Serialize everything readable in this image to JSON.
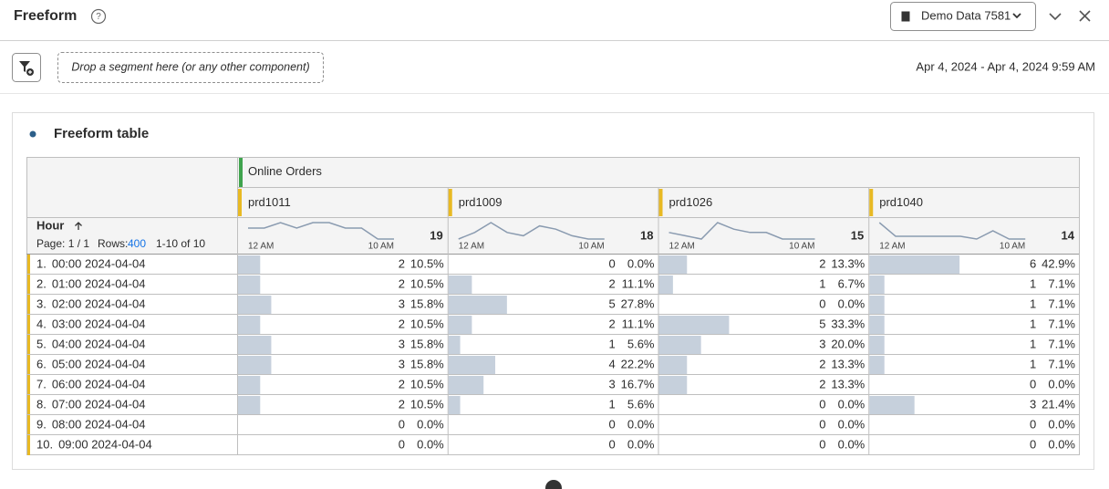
{
  "header": {
    "title": "Freeform",
    "dataview": "Demo Data 7581"
  },
  "toolbar": {
    "drop_zone": "Drop a segment here (or any other component)",
    "date_range": "Apr 4, 2024 - Apr 4, 2024 9:59 AM"
  },
  "panel": {
    "title": "Freeform table"
  },
  "table": {
    "metric": "Online Orders",
    "dimension": "Hour",
    "pagination": {
      "page": "Page: 1 / 1",
      "rows_label": "Rows:",
      "rows_value": "400",
      "range": "1-10 of 10"
    },
    "spark_start": "12 AM",
    "spark_end": "10 AM",
    "columns": [
      {
        "name": "prd1011",
        "total": 19
      },
      {
        "name": "prd1009",
        "total": 18
      },
      {
        "name": "prd1026",
        "total": 15
      },
      {
        "name": "prd1040",
        "total": 14
      }
    ],
    "rows": [
      {
        "rank": "1.",
        "label": "00:00 2024-04-04",
        "cells": [
          {
            "value": 2,
            "percent": "10.5%"
          },
          {
            "value": 0,
            "percent": "0.0%"
          },
          {
            "value": 2,
            "percent": "13.3%"
          },
          {
            "value": 6,
            "percent": "42.9%"
          }
        ]
      },
      {
        "rank": "2.",
        "label": "01:00 2024-04-04",
        "cells": [
          {
            "value": 2,
            "percent": "10.5%"
          },
          {
            "value": 2,
            "percent": "11.1%"
          },
          {
            "value": 1,
            "percent": "6.7%"
          },
          {
            "value": 1,
            "percent": "7.1%"
          }
        ]
      },
      {
        "rank": "3.",
        "label": "02:00 2024-04-04",
        "cells": [
          {
            "value": 3,
            "percent": "15.8%"
          },
          {
            "value": 5,
            "percent": "27.8%"
          },
          {
            "value": 0,
            "percent": "0.0%"
          },
          {
            "value": 1,
            "percent": "7.1%"
          }
        ]
      },
      {
        "rank": "4.",
        "label": "03:00 2024-04-04",
        "cells": [
          {
            "value": 2,
            "percent": "10.5%"
          },
          {
            "value": 2,
            "percent": "11.1%"
          },
          {
            "value": 5,
            "percent": "33.3%"
          },
          {
            "value": 1,
            "percent": "7.1%"
          }
        ]
      },
      {
        "rank": "5.",
        "label": "04:00 2024-04-04",
        "cells": [
          {
            "value": 3,
            "percent": "15.8%"
          },
          {
            "value": 1,
            "percent": "5.6%"
          },
          {
            "value": 3,
            "percent": "20.0%"
          },
          {
            "value": 1,
            "percent": "7.1%"
          }
        ]
      },
      {
        "rank": "6.",
        "label": "05:00 2024-04-04",
        "cells": [
          {
            "value": 3,
            "percent": "15.8%"
          },
          {
            "value": 4,
            "percent": "22.2%"
          },
          {
            "value": 2,
            "percent": "13.3%"
          },
          {
            "value": 1,
            "percent": "7.1%"
          }
        ]
      },
      {
        "rank": "7.",
        "label": "06:00 2024-04-04",
        "cells": [
          {
            "value": 2,
            "percent": "10.5%"
          },
          {
            "value": 3,
            "percent": "16.7%"
          },
          {
            "value": 2,
            "percent": "13.3%"
          },
          {
            "value": 0,
            "percent": "0.0%"
          }
        ]
      },
      {
        "rank": "8.",
        "label": "07:00 2024-04-04",
        "cells": [
          {
            "value": 2,
            "percent": "10.5%"
          },
          {
            "value": 1,
            "percent": "5.6%"
          },
          {
            "value": 0,
            "percent": "0.0%"
          },
          {
            "value": 3,
            "percent": "21.4%"
          }
        ]
      },
      {
        "rank": "9.",
        "label": "08:00 2024-04-04",
        "cells": [
          {
            "value": 0,
            "percent": "0.0%"
          },
          {
            "value": 0,
            "percent": "0.0%"
          },
          {
            "value": 0,
            "percent": "0.0%"
          },
          {
            "value": 0,
            "percent": "0.0%"
          }
        ]
      },
      {
        "rank": "10.",
        "label": "09:00 2024-04-04",
        "cells": [
          {
            "value": 0,
            "percent": "0.0%"
          },
          {
            "value": 0,
            "percent": "0.0%"
          },
          {
            "value": 0,
            "percent": "0.0%"
          },
          {
            "value": 0,
            "percent": "0.0%"
          }
        ]
      }
    ]
  }
}
